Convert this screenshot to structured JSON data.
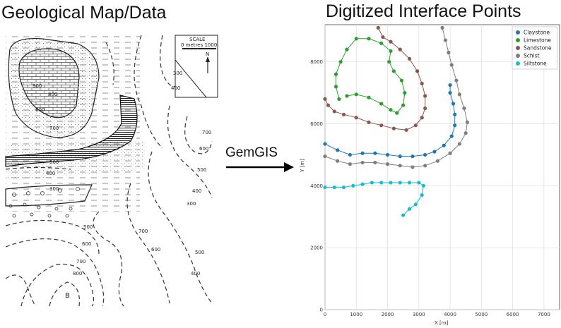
{
  "titles": {
    "left": "Geological Map/Data",
    "right": "Digitized Interface Points",
    "arrow": "GemGIS"
  },
  "map": {
    "scale_label": "SCALE",
    "scale_units": "0 metres 1000",
    "north": "N",
    "point_label": "B",
    "contour_labels": [
      "300",
      "400",
      "900",
      "800",
      "700",
      "600",
      "500",
      "400",
      "300",
      "700",
      "600",
      "500",
      "400",
      "300",
      "500",
      "600",
      "700",
      "800",
      "700",
      "600",
      "500",
      "400"
    ]
  },
  "chart_data": {
    "type": "scatter",
    "xlabel": "X [m]",
    "ylabel": "Y [m]",
    "xlim": [
      0,
      7500
    ],
    "ylim": [
      0,
      9200
    ],
    "xticks": [
      0,
      1000,
      2000,
      3000,
      4000,
      5000,
      6000,
      7000
    ],
    "yticks": [
      0,
      2000,
      4000,
      6000,
      8000
    ],
    "grid": true,
    "legend_position": "top-right",
    "series": [
      {
        "name": "Claystone",
        "color": "#1f77b4",
        "points": [
          [
            0,
            5350
          ],
          [
            400,
            5150
          ],
          [
            800,
            5000
          ],
          [
            1200,
            5050
          ],
          [
            1600,
            5050
          ],
          [
            2000,
            5000
          ],
          [
            2400,
            4950
          ],
          [
            2800,
            4950
          ],
          [
            3200,
            5000
          ],
          [
            3500,
            5100
          ],
          [
            3800,
            5300
          ],
          [
            4050,
            5600
          ],
          [
            4150,
            5950
          ],
          [
            4150,
            6300
          ],
          [
            4100,
            6650
          ],
          [
            4000,
            7000
          ],
          [
            4000,
            7250
          ]
        ]
      },
      {
        "name": "Limestone",
        "color": "#2ca02c",
        "points": [
          [
            450,
            6800
          ],
          [
            350,
            7200
          ],
          [
            350,
            7600
          ],
          [
            500,
            8000
          ],
          [
            700,
            8400
          ],
          [
            1000,
            8750
          ],
          [
            1400,
            8750
          ],
          [
            1800,
            8600
          ],
          [
            2100,
            8350
          ],
          [
            2050,
            8000
          ],
          [
            2200,
            7700
          ],
          [
            2450,
            7400
          ],
          [
            2550,
            7000
          ],
          [
            2500,
            6600
          ],
          [
            2300,
            6350
          ],
          [
            2100,
            6450
          ],
          [
            1800,
            6650
          ],
          [
            1400,
            6850
          ],
          [
            1000,
            6950
          ],
          [
            700,
            6900
          ]
        ]
      },
      {
        "name": "Sandstone",
        "color": "#8c564b",
        "points": [
          [
            0,
            6800
          ],
          [
            100,
            6600
          ],
          [
            300,
            6400
          ],
          [
            600,
            6300
          ],
          [
            1000,
            6200
          ],
          [
            1400,
            6050
          ],
          [
            1800,
            5950
          ],
          [
            2200,
            5850
          ],
          [
            2600,
            5800
          ],
          [
            2900,
            5950
          ],
          [
            3100,
            6200
          ],
          [
            3200,
            6500
          ],
          [
            3200,
            6900
          ],
          [
            3100,
            7300
          ],
          [
            2950,
            7700
          ],
          [
            2700,
            8100
          ],
          [
            2400,
            8400
          ],
          [
            2100,
            8650
          ],
          [
            1850,
            8800
          ],
          [
            1700,
            9100
          ]
        ]
      },
      {
        "name": "Schist",
        "color": "#7f7f7f",
        "points": [
          [
            0,
            4950
          ],
          [
            400,
            4800
          ],
          [
            800,
            4700
          ],
          [
            1200,
            4750
          ],
          [
            1600,
            4750
          ],
          [
            2000,
            4700
          ],
          [
            2400,
            4650
          ],
          [
            2800,
            4600
          ],
          [
            3200,
            4650
          ],
          [
            3600,
            4800
          ],
          [
            4000,
            5050
          ],
          [
            4300,
            5350
          ],
          [
            4500,
            5700
          ],
          [
            4550,
            6050
          ],
          [
            4450,
            6500
          ],
          [
            4300,
            6950
          ],
          [
            4200,
            7400
          ],
          [
            4050,
            7900
          ],
          [
            3950,
            8300
          ],
          [
            3850,
            8700
          ],
          [
            3750,
            9100
          ]
        ]
      },
      {
        "name": "Siltstone",
        "color": "#17becf",
        "points": [
          [
            0,
            3950
          ],
          [
            300,
            3950
          ],
          [
            600,
            3950
          ],
          [
            900,
            4000
          ],
          [
            1200,
            4050
          ],
          [
            1500,
            4100
          ],
          [
            1800,
            4100
          ],
          [
            2100,
            4100
          ],
          [
            2400,
            4100
          ],
          [
            2700,
            4100
          ],
          [
            3000,
            4100
          ],
          [
            3150,
            4000
          ],
          [
            3100,
            3700
          ],
          [
            2900,
            3400
          ],
          [
            2700,
            3250
          ],
          [
            2500,
            3050
          ]
        ]
      }
    ]
  }
}
